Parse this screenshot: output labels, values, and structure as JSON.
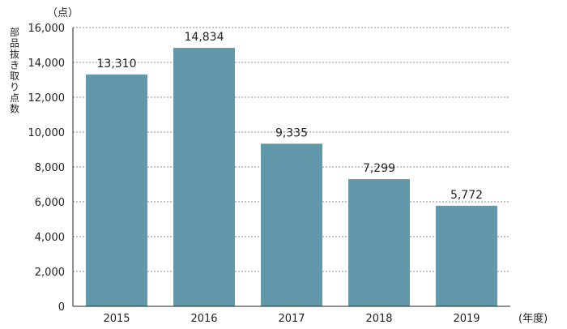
{
  "chart_data": {
    "type": "bar",
    "categories": [
      "2015",
      "2016",
      "2017",
      "2018",
      "2019"
    ],
    "values": [
      13310,
      14834,
      9335,
      7299,
      5772
    ],
    "value_labels": [
      "13,310",
      "14,834",
      "9,335",
      "7,299",
      "5,772"
    ],
    "ylim": [
      0,
      16000
    ],
    "yticks": [
      0,
      2000,
      4000,
      6000,
      8000,
      10000,
      12000,
      14000,
      16000
    ],
    "ytick_labels": [
      "0",
      "2,000",
      "4,000",
      "6,000",
      "8,000",
      "10,000",
      "12,000",
      "14,000",
      "16,000"
    ],
    "y_unit": "（点）",
    "ylabel": "部品抜き取り点数",
    "x_unit": "(年度)",
    "grid": "horizontal-dotted",
    "bar_color": "#6299aa",
    "grid_color": "#888888",
    "axis_color": "#222222"
  }
}
